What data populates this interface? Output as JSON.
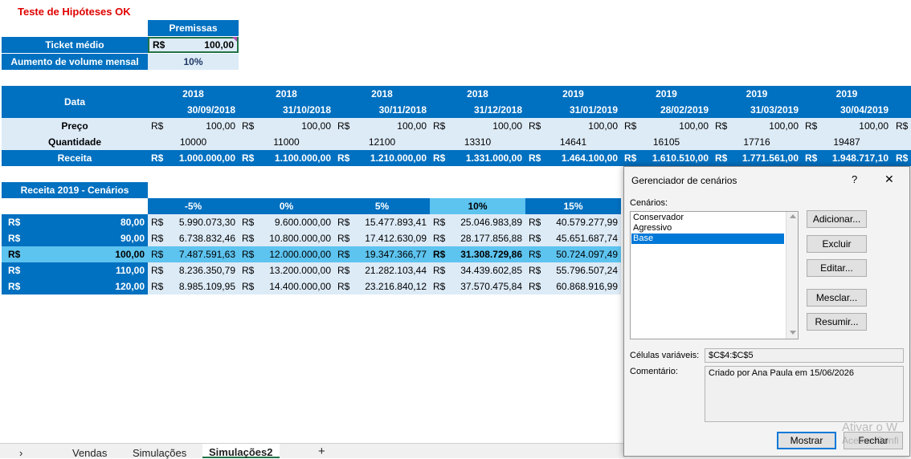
{
  "sheet_title": "Teste de Hipóteses OK",
  "premissas": {
    "header": "Premissas",
    "ticket_label": "Ticket médio",
    "ticket_currency": "R$",
    "ticket_value": "100,00",
    "volume_label": "Aumento de volume mensal",
    "volume_value": "10%"
  },
  "data_table": {
    "row_header": "Data",
    "price_label": "Preço",
    "qty_label": "Quantidade",
    "revenue_label": "Receita",
    "currency": "R$",
    "columns": [
      {
        "year": "2018",
        "date": "30/09/2018",
        "price": "100,00",
        "qty": "10000",
        "revenue": "1.000.000,00"
      },
      {
        "year": "2018",
        "date": "31/10/2018",
        "price": "100,00",
        "qty": "11000",
        "revenue": "1.100.000,00"
      },
      {
        "year": "2018",
        "date": "30/11/2018",
        "price": "100,00",
        "qty": "12100",
        "revenue": "1.210.000,00"
      },
      {
        "year": "2018",
        "date": "31/12/2018",
        "price": "100,00",
        "qty": "13310",
        "revenue": "1.331.000,00"
      },
      {
        "year": "2019",
        "date": "31/01/2019",
        "price": "100,00",
        "qty": "14641",
        "revenue": "1.464.100,00"
      },
      {
        "year": "2019",
        "date": "28/02/2019",
        "price": "100,00",
        "qty": "16105",
        "revenue": "1.610.510,00"
      },
      {
        "year": "2019",
        "date": "31/03/2019",
        "price": "100,00",
        "qty": "17716",
        "revenue": "1.771.561,00"
      },
      {
        "year": "2019",
        "date": "30/04/2019",
        "price": "100,00",
        "qty": "19487",
        "revenue": "1.948.717,10"
      }
    ],
    "overflow_currency": "R$"
  },
  "scenarios_table": {
    "title": "Receita 2019 - Cenários",
    "col_headers": [
      "-5%",
      "0%",
      "5%",
      "10%",
      "15%"
    ],
    "rows": [
      {
        "label": "80,00",
        "values": [
          "5.990.073,30",
          "9.600.000,00",
          "15.477.893,41",
          "25.046.983,89",
          "40.579.277,99"
        ]
      },
      {
        "label": "90,00",
        "values": [
          "6.738.832,46",
          "10.800.000,00",
          "17.412.630,09",
          "28.177.856,88",
          "45.651.687,74"
        ]
      },
      {
        "label": "100,00",
        "values": [
          "7.487.591,63",
          "12.000.000,00",
          "19.347.366,77",
          "31.308.729,86",
          "50.724.097,49"
        ]
      },
      {
        "label": "110,00",
        "values": [
          "8.236.350,79",
          "13.200.000,00",
          "21.282.103,44",
          "34.439.602,85",
          "55.796.507,24"
        ]
      },
      {
        "label": "120,00",
        "values": [
          "8.985.109,95",
          "14.400.000,00",
          "23.216.840,12",
          "37.570.475,84",
          "60.868.916,99"
        ]
      }
    ]
  },
  "dialog": {
    "title": "Gerenciador de cenários",
    "help": "?",
    "close": "✕",
    "scenarios_label": "Cenários:",
    "scenarios": [
      "Conservador",
      "Agressivo",
      "Base"
    ],
    "selected": "Base",
    "buttons": {
      "add": "Adicionar...",
      "delete": "Excluir",
      "edit": "Editar...",
      "merge": "Mesclar...",
      "summary": "Resumir..."
    },
    "changing_cells_label": "Células variáveis:",
    "changing_cells": "$C$4:$C$5",
    "comment_label": "Comentário:",
    "comment": "Criado por Ana Paula em 15/06/2026",
    "show": "Mostrar",
    "close_button": "Fechar"
  },
  "watermark": {
    "line1": "Ativar o W",
    "line2": "Acesse Confi"
  },
  "sheet_tabs": {
    "prev": "›",
    "tabs": [
      "Vendas",
      "Simulações",
      "Simulações2"
    ],
    "active": "Simulações2",
    "add": "+"
  }
}
